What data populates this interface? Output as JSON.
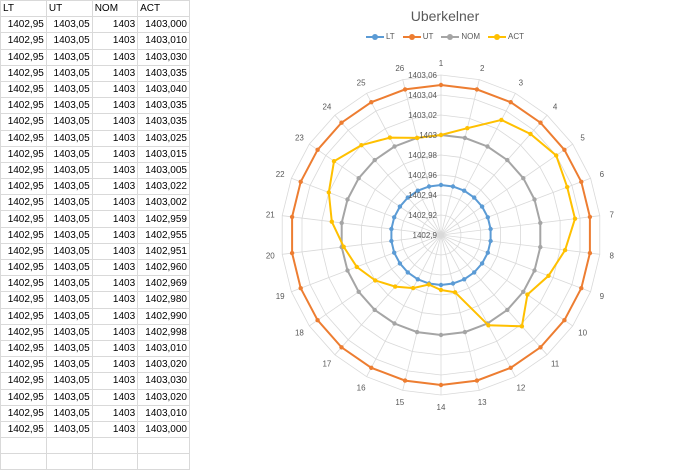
{
  "table": {
    "headers": [
      "LT",
      "UT",
      "NOM",
      "ACT"
    ],
    "rows": [
      [
        "1402,95",
        "1403,05",
        "1403",
        "1403,000"
      ],
      [
        "1402,95",
        "1403,05",
        "1403",
        "1403,010"
      ],
      [
        "1402,95",
        "1403,05",
        "1403",
        "1403,030"
      ],
      [
        "1402,95",
        "1403,05",
        "1403",
        "1403,035"
      ],
      [
        "1402,95",
        "1403,05",
        "1403",
        "1403,040"
      ],
      [
        "1402,95",
        "1403,05",
        "1403",
        "1403,035"
      ],
      [
        "1402,95",
        "1403,05",
        "1403",
        "1403,035"
      ],
      [
        "1402,95",
        "1403,05",
        "1403",
        "1403,025"
      ],
      [
        "1402,95",
        "1403,05",
        "1403",
        "1403,015"
      ],
      [
        "1402,95",
        "1403,05",
        "1403",
        "1403,005"
      ],
      [
        "1402,95",
        "1403,05",
        "1403",
        "1403,022"
      ],
      [
        "1402,95",
        "1403,05",
        "1403",
        "1403,002"
      ],
      [
        "1402,95",
        "1403,05",
        "1403",
        "1402,959"
      ],
      [
        "1402,95",
        "1403,05",
        "1403",
        "1402,955"
      ],
      [
        "1402,95",
        "1403,05",
        "1403",
        "1402,951"
      ],
      [
        "1402,95",
        "1403,05",
        "1403",
        "1402,960"
      ],
      [
        "1402,95",
        "1403,05",
        "1403",
        "1402,969"
      ],
      [
        "1402,95",
        "1403,05",
        "1403",
        "1402,980"
      ],
      [
        "1402,95",
        "1403,05",
        "1403",
        "1402,990"
      ],
      [
        "1402,95",
        "1403,05",
        "1403",
        "1402,998"
      ],
      [
        "1402,95",
        "1403,05",
        "1403",
        "1403,010"
      ],
      [
        "1402,95",
        "1403,05",
        "1403",
        "1403,020"
      ],
      [
        "1402,95",
        "1403,05",
        "1403",
        "1403,030"
      ],
      [
        "1402,95",
        "1403,05",
        "1403",
        "1403,020"
      ],
      [
        "1402,95",
        "1403,05",
        "1403",
        "1403,010"
      ],
      [
        "1402,95",
        "1403,05",
        "1403",
        "1403,000"
      ]
    ]
  },
  "chart_data": {
    "type": "radar",
    "title": "Uberkelner",
    "legend_position": "top",
    "grid": true,
    "categories": [
      "1",
      "2",
      "3",
      "4",
      "5",
      "6",
      "7",
      "8",
      "9",
      "10",
      "11",
      "12",
      "13",
      "14",
      "15",
      "16",
      "17",
      "18",
      "19",
      "20",
      "21",
      "22",
      "23",
      "24",
      "25",
      "26"
    ],
    "r_range": [
      1402.9,
      1403.06
    ],
    "r_ticks": [
      "1402,9",
      "1402,92",
      "1402,94",
      "1402,96",
      "1402,98",
      "1403",
      "1403,02",
      "1403,04",
      "1403,06"
    ],
    "series": [
      {
        "name": "LT",
        "color": "#5b9bd5",
        "values": [
          1402.95,
          1402.95,
          1402.95,
          1402.95,
          1402.95,
          1402.95,
          1402.95,
          1402.95,
          1402.95,
          1402.95,
          1402.95,
          1402.95,
          1402.95,
          1402.95,
          1402.95,
          1402.95,
          1402.95,
          1402.95,
          1402.95,
          1402.95,
          1402.95,
          1402.95,
          1402.95,
          1402.95,
          1402.95,
          1402.95
        ]
      },
      {
        "name": "UT",
        "color": "#ed7d31",
        "values": [
          1403.05,
          1403.05,
          1403.05,
          1403.05,
          1403.05,
          1403.05,
          1403.05,
          1403.05,
          1403.05,
          1403.05,
          1403.05,
          1403.05,
          1403.05,
          1403.05,
          1403.05,
          1403.05,
          1403.05,
          1403.05,
          1403.05,
          1403.05,
          1403.05,
          1403.05,
          1403.05,
          1403.05,
          1403.05,
          1403.05
        ]
      },
      {
        "name": "NOM",
        "color": "#a5a5a5",
        "values": [
          1403,
          1403,
          1403,
          1403,
          1403,
          1403,
          1403,
          1403,
          1403,
          1403,
          1403,
          1403,
          1403,
          1403,
          1403,
          1403,
          1403,
          1403,
          1403,
          1403,
          1403,
          1403,
          1403,
          1403,
          1403,
          1403
        ]
      },
      {
        "name": "ACT",
        "color": "#ffc000",
        "values": [
          1403.0,
          1403.01,
          1403.03,
          1403.035,
          1403.04,
          1403.035,
          1403.035,
          1403.025,
          1403.015,
          1403.005,
          1403.022,
          1403.002,
          1402.959,
          1402.955,
          1402.951,
          1402.96,
          1402.969,
          1402.98,
          1402.99,
          1402.998,
          1403.01,
          1403.02,
          1403.03,
          1403.02,
          1403.01,
          1403.0
        ]
      }
    ]
  }
}
